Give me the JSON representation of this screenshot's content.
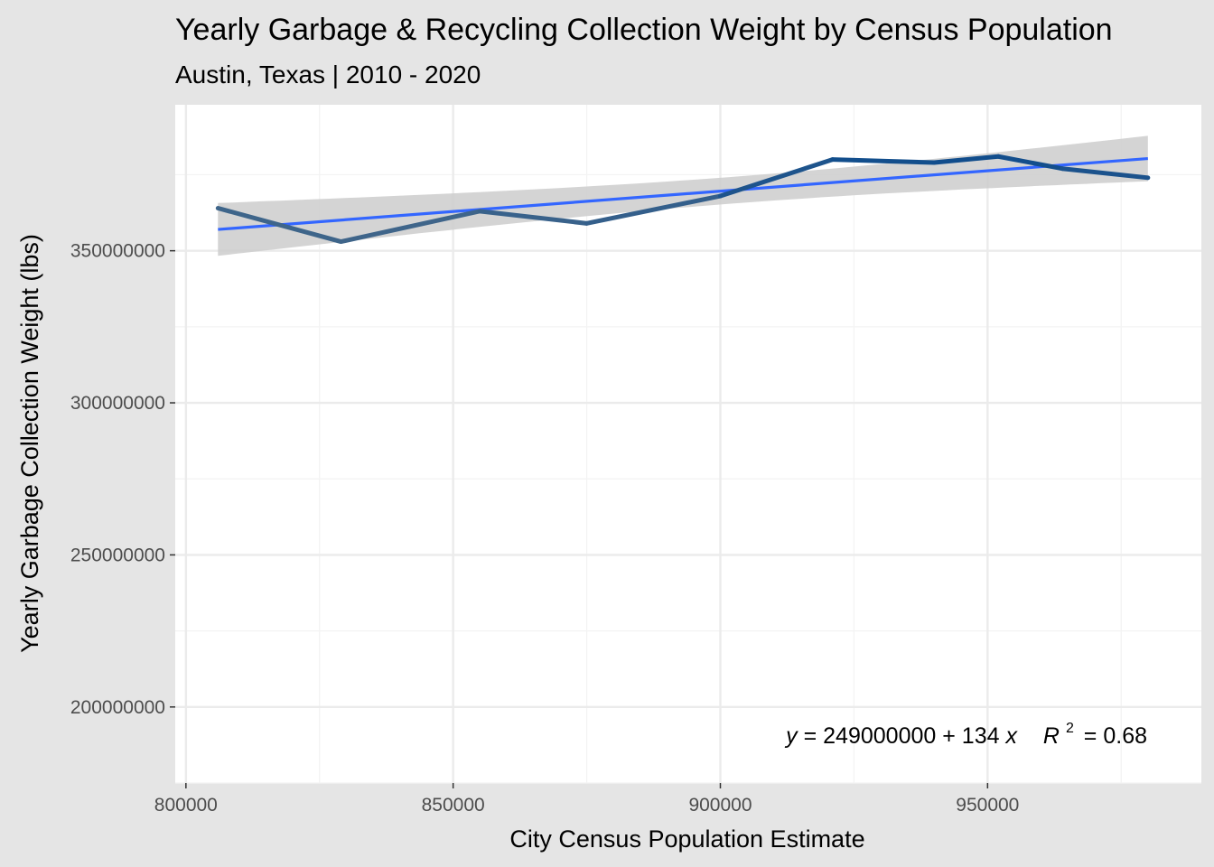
{
  "chart_data": {
    "type": "line",
    "title": "Yearly Garbage & Recycling Collection Weight by Census Population",
    "subtitle": "Austin, Texas | 2010 - 2020",
    "xlabel": "City Census Population Estimate",
    "ylabel": "Yearly Garbage Collection Weight (lbs)",
    "xlim": [
      798000,
      990000
    ],
    "ylim": [
      175000000,
      398000000
    ],
    "x_ticks": [
      800000,
      850000,
      900000,
      950000
    ],
    "y_ticks": [
      200000000,
      250000000,
      300000000,
      350000000
    ],
    "x_tick_labels": [
      "800000",
      "850000",
      "900000",
      "950000"
    ],
    "y_tick_labels": [
      "200000000",
      "250000000",
      "300000000",
      "350000000"
    ],
    "grid": true,
    "series": [
      {
        "x": [
          806000,
          829000,
          855000,
          875000,
          900000,
          921000,
          940000,
          952000,
          964000,
          980000
        ],
        "y": [
          364000000,
          353000000,
          363000000,
          359000000,
          368000000,
          380000000,
          379000000,
          381000000,
          377000000,
          374000000
        ],
        "color_start": "#4a6b8a",
        "color_end": "#0f4c8c"
      }
    ],
    "trend": {
      "intercept": 249000000,
      "slope": 134,
      "x_range": [
        806000,
        980000
      ],
      "color": "#3366ff",
      "band_color": "#cccccc"
    },
    "annotation": {
      "y_var": "y",
      "equals": "=",
      "intercept_text": "249000000",
      "plus": "+",
      "slope_text": "134",
      "x_var": "x",
      "r_var": "R",
      "r_sup": "2",
      "r_value": "= 0.68"
    }
  }
}
